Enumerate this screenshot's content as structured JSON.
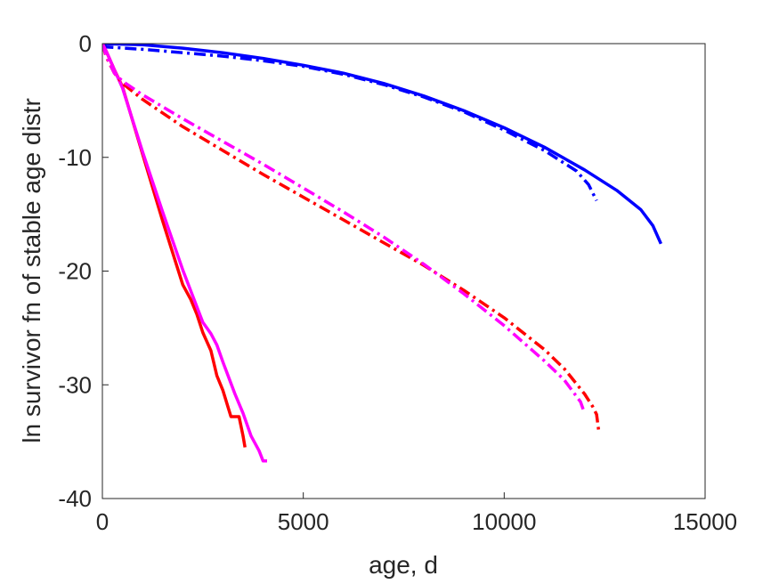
{
  "chart_data": {
    "type": "line",
    "title": "",
    "xlabel": "age, d",
    "ylabel": "ln survivor fn of stable age distr",
    "xlim": [
      0,
      15000
    ],
    "ylim": [
      -40,
      0
    ],
    "xticks": [
      0,
      5000,
      10000,
      15000
    ],
    "yticks": [
      0,
      -10,
      -20,
      -30,
      -40
    ],
    "grid": false,
    "box": true,
    "series": [
      {
        "color": "#0000ff",
        "style": "solid",
        "x": [
          0,
          1000,
          2000,
          3000,
          4000,
          5000,
          6000,
          7000,
          8000,
          9000,
          10000,
          11000,
          12000,
          12800,
          13400,
          13700,
          13900
        ],
        "y": [
          0,
          -0.1,
          -0.4,
          -0.8,
          -1.3,
          -1.9,
          -2.6,
          -3.5,
          -4.6,
          -5.9,
          -7.4,
          -9.1,
          -11.1,
          -12.9,
          -14.6,
          -16.0,
          -17.6
        ]
      },
      {
        "color": "#0000ff",
        "style": "dashdot",
        "x": [
          0,
          100,
          1000,
          2000,
          3000,
          4000,
          5000,
          6000,
          7000,
          8000,
          9000,
          10000,
          11000,
          11800,
          12100,
          12300
        ],
        "y": [
          -0.1,
          -0.3,
          -0.5,
          -0.8,
          -1.1,
          -1.5,
          -2.0,
          -2.7,
          -3.6,
          -4.7,
          -6.0,
          -7.6,
          -9.4,
          -11.2,
          -12.4,
          -13.8
        ]
      },
      {
        "color": "#ff0000",
        "style": "solid",
        "x": [
          0,
          100,
          200,
          300,
          500,
          1000,
          1500,
          2000,
          2200,
          2350,
          2500,
          2700,
          2850,
          3000,
          3200,
          3400,
          3500,
          3550
        ],
        "y": [
          0,
          -0.7,
          -1.5,
          -2.3,
          -3.8,
          -9.7,
          -15.6,
          -21.2,
          -22.5,
          -23.8,
          -25.4,
          -27.0,
          -29.2,
          -30.5,
          -32.8,
          -32.8,
          -34.5,
          -35.5
        ]
      },
      {
        "color": "#ff00ff",
        "style": "solid",
        "x": [
          0,
          100,
          200,
          300,
          500,
          1000,
          1500,
          2000,
          2500,
          2700,
          2850,
          3000,
          3300,
          3500,
          3700,
          3900,
          4000,
          4100
        ],
        "y": [
          0,
          -0.7,
          -1.5,
          -2.3,
          -3.9,
          -9.5,
          -14.8,
          -19.9,
          -24.5,
          -25.5,
          -26.5,
          -28.0,
          -30.8,
          -32.5,
          -34.5,
          -35.8,
          -36.7,
          -36.7
        ]
      },
      {
        "color": "#ff0000",
        "style": "dashdot",
        "x": [
          0,
          100,
          300,
          500,
          1000,
          2000,
          3000,
          4000,
          5000,
          6000,
          7000,
          8000,
          9000,
          10000,
          11000,
          11500,
          12000,
          12200,
          12300,
          12350
        ],
        "y": [
          0,
          -1.2,
          -2.6,
          -3.5,
          -4.9,
          -7.3,
          -9.4,
          -11.5,
          -13.5,
          -15.5,
          -17.5,
          -19.5,
          -21.7,
          -24.1,
          -26.9,
          -28.6,
          -30.8,
          -31.9,
          -32.6,
          -34.0
        ]
      },
      {
        "color": "#ff00ff",
        "style": "dashdot",
        "x": [
          0,
          100,
          300,
          500,
          1000,
          2000,
          3000,
          4000,
          5000,
          6000,
          7000,
          8000,
          9000,
          10000,
          11000,
          11500,
          11900,
          12000
        ],
        "y": [
          0,
          -1.1,
          -2.6,
          -3.3,
          -4.5,
          -6.6,
          -8.6,
          -10.6,
          -12.7,
          -14.8,
          -17.0,
          -19.4,
          -22.0,
          -24.8,
          -27.9,
          -29.6,
          -31.5,
          -32.5
        ]
      }
    ]
  }
}
